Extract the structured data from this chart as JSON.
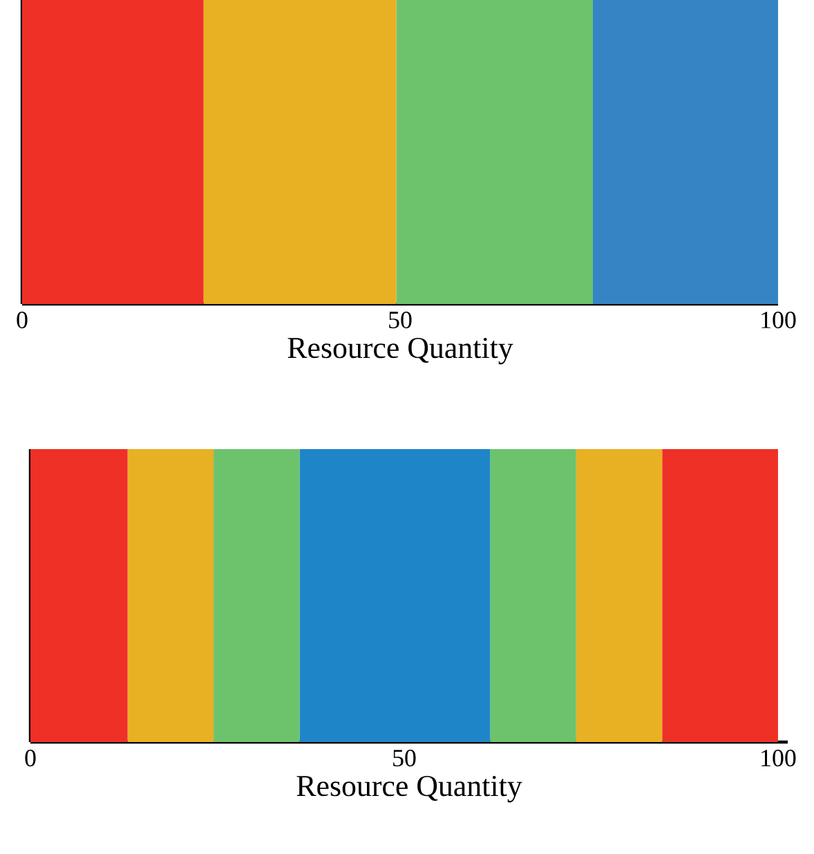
{
  "chart_data": [
    {
      "type": "bar",
      "orientation": "horizontal",
      "stacked": true,
      "categories": [
        null
      ],
      "xlabel": "Resource Quantity",
      "xlim": [
        0,
        100
      ],
      "xticks": [
        0,
        50,
        100
      ],
      "tick_labels": "x",
      "series": [
        {
          "color": "#ee3027",
          "values": [
            24
          ]
        },
        {
          "color": "#e8b023",
          "values": [
            25.5
          ]
        },
        {
          "color": "#6cc36c",
          "values": [
            26
          ]
        },
        {
          "color": "#3784c5",
          "values": [
            24.5
          ]
        }
      ]
    },
    {
      "type": "bar",
      "orientation": "horizontal",
      "stacked": true,
      "categories": [
        null
      ],
      "xlabel": "Resource Quantity",
      "xlim": [
        0,
        101.3
      ],
      "xticks": [
        0,
        50,
        100
      ],
      "tick_labels": "x",
      "series": [
        {
          "color": "#ee3027",
          "values": [
            13
          ]
        },
        {
          "color": "#e8b023",
          "values": [
            11.5
          ]
        },
        {
          "color": "#6cc36c",
          "values": [
            11.5
          ]
        },
        {
          "color": "#1e86c8",
          "values": [
            25.5
          ]
        },
        {
          "color": "#6cc36c",
          "values": [
            11.5
          ]
        },
        {
          "color": "#e8b023",
          "values": [
            11.5
          ]
        },
        {
          "color": "#ee3027",
          "values": [
            15.5
          ]
        }
      ]
    }
  ]
}
